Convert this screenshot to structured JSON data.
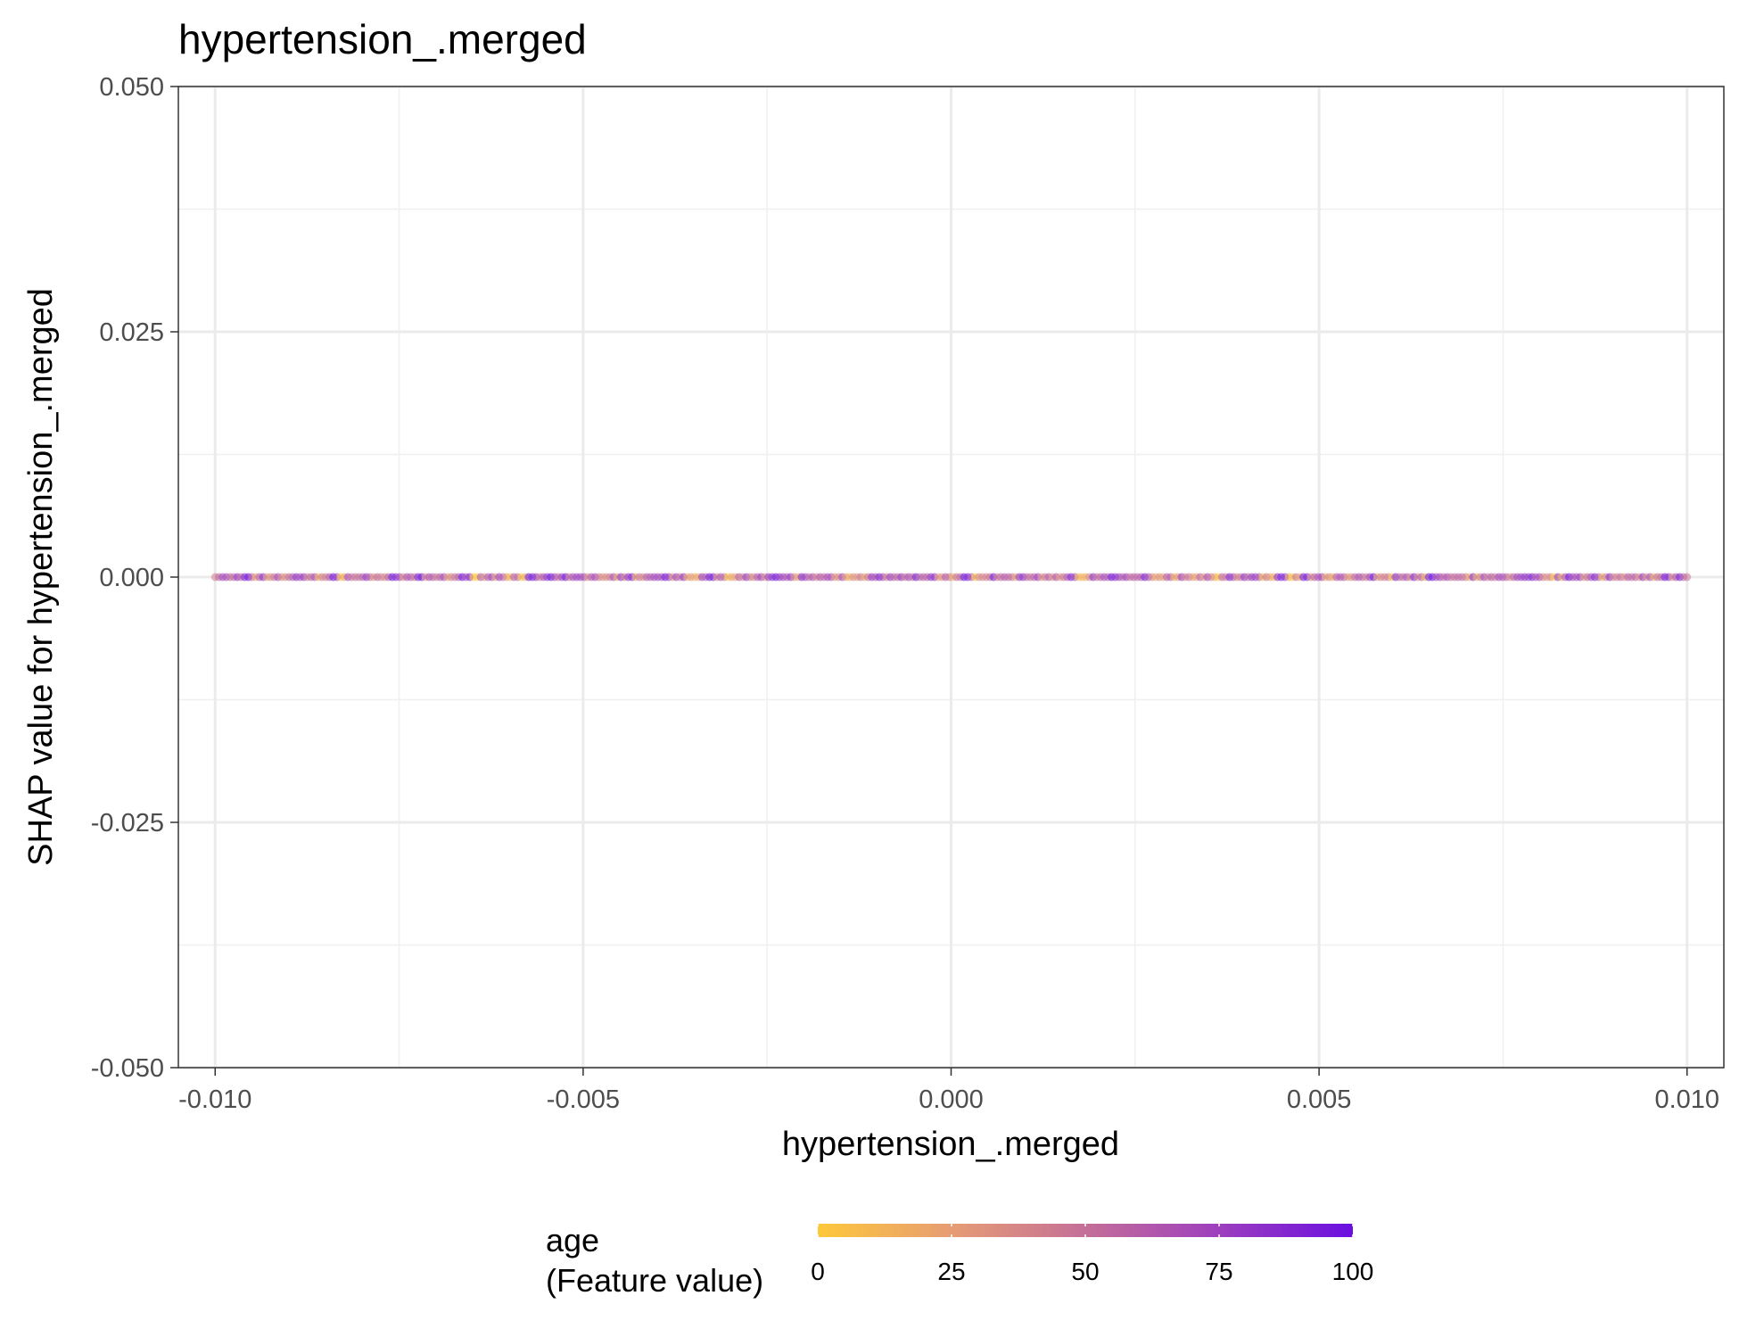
{
  "chart_data": {
    "type": "scatter",
    "title": "hypertension_.merged",
    "xlabel": "hypertension_.merged",
    "ylabel": "SHAP value for hypertension_.merged",
    "xlim": [
      -0.0105,
      0.0105
    ],
    "ylim": [
      -0.05,
      0.05
    ],
    "x_ticks": [
      -0.01,
      -0.005,
      0.0,
      0.005,
      0.01
    ],
    "x_tick_labels": [
      "-0.010",
      "-0.005",
      "0.000",
      "0.005",
      "0.010"
    ],
    "y_ticks": [
      -0.05,
      -0.025,
      0.0,
      0.025,
      0.05
    ],
    "y_tick_labels": [
      "-0.050",
      "-0.025",
      "0.000",
      "0.025",
      "0.050"
    ],
    "grid": true,
    "points_description_range": {
      "x_min": -0.01,
      "x_max": 0.01,
      "y": 0.0
    },
    "point_count_estimate": 400,
    "color_feature": {
      "name": "age",
      "subtitle": "(Feature value)",
      "range": [
        0,
        100
      ],
      "ticks": [
        0,
        25,
        50,
        75,
        100
      ],
      "tick_labels": [
        "0",
        "25",
        "50",
        "75",
        "100"
      ],
      "colors": [
        "#fdc83a",
        "#e79c74",
        "#c46f98",
        "#9d3fbe",
        "#6a0fe0"
      ]
    },
    "legend_position": "bottom"
  }
}
